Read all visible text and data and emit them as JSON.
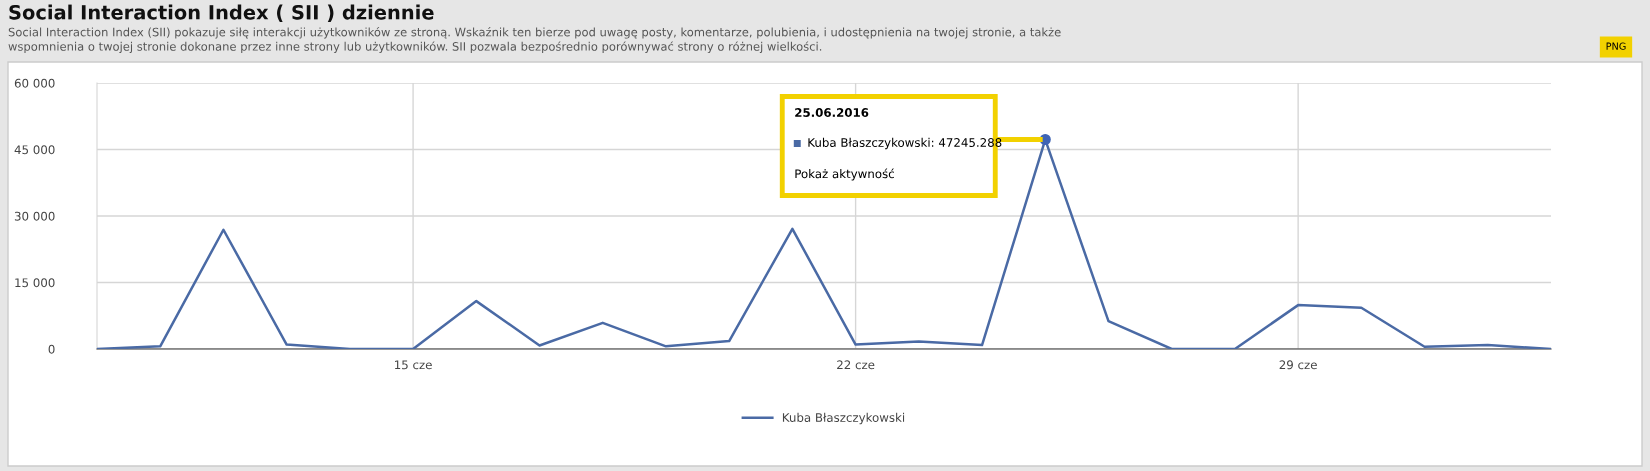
{
  "chart_data": {
    "type": "line",
    "title": "Social Interaction Index ( SII ) dziennie",
    "subtitle": "Social Interaction Index (SII) pokazuje siłę interakcji użytkowników ze stroną. Wskaźnik ten bierze pod uwagę posty, komentarze, polubienia, i udostępnienia na twojej stronie, a także\nwspomnienia o twojej stronie dokonane przez inne strony lub użytkowników. SII pozwala bezpośrednio porównywać strony o różnej wielkości.",
    "x": [
      "2016-06-10",
      "2016-06-11",
      "2016-06-12",
      "2016-06-13",
      "2016-06-14",
      "2016-06-15",
      "2016-06-16",
      "2016-06-17",
      "2016-06-18",
      "2016-06-19",
      "2016-06-20",
      "2016-06-21",
      "2016-06-22",
      "2016-06-23",
      "2016-06-24",
      "2016-06-25",
      "2016-06-26",
      "2016-06-27",
      "2016-06-28",
      "2016-06-29",
      "2016-06-30",
      "2016-07-01",
      "2016-07-02",
      "2016-07-03"
    ],
    "series": [
      {
        "name": "Kuba Błaszczykowski",
        "color": "#4a6aa5",
        "values": [
          0,
          600,
          26900,
          1000,
          0,
          0,
          10800,
          800,
          5900,
          600,
          1800,
          27100,
          1000,
          1700,
          900,
          47245.288,
          6300,
          0,
          0,
          9900,
          9300,
          500,
          900,
          0
        ]
      }
    ],
    "xlim": [
      "2016-06-10",
      "2016-07-03"
    ],
    "xticks": [
      {
        "value": "2016-06-15",
        "label": "15 cze"
      },
      {
        "value": "2016-06-22",
        "label": "22 cze"
      },
      {
        "value": "2016-06-29",
        "label": "29 cze"
      }
    ],
    "ylim": [
      0,
      60000
    ],
    "yticks": [
      0,
      {
        "value": 15000,
        "label": "15 000"
      },
      {
        "value": 30000,
        "label": "30 000"
      },
      {
        "value": 45000,
        "label": "45 000"
      },
      {
        "value": 60000,
        "label": "60 000"
      }
    ],
    "grid": true,
    "legend": "bottom",
    "marker": "none",
    "line_style": "solid",
    "annotations": [
      "25.06.2016",
      {
        "text": "Kuba Błaszczykowski: 47245.288",
        "x": "2016-06-25",
        "y": 47245.288
      },
      "Pokaż aktywność",
      "PNG"
    ]
  }
}
